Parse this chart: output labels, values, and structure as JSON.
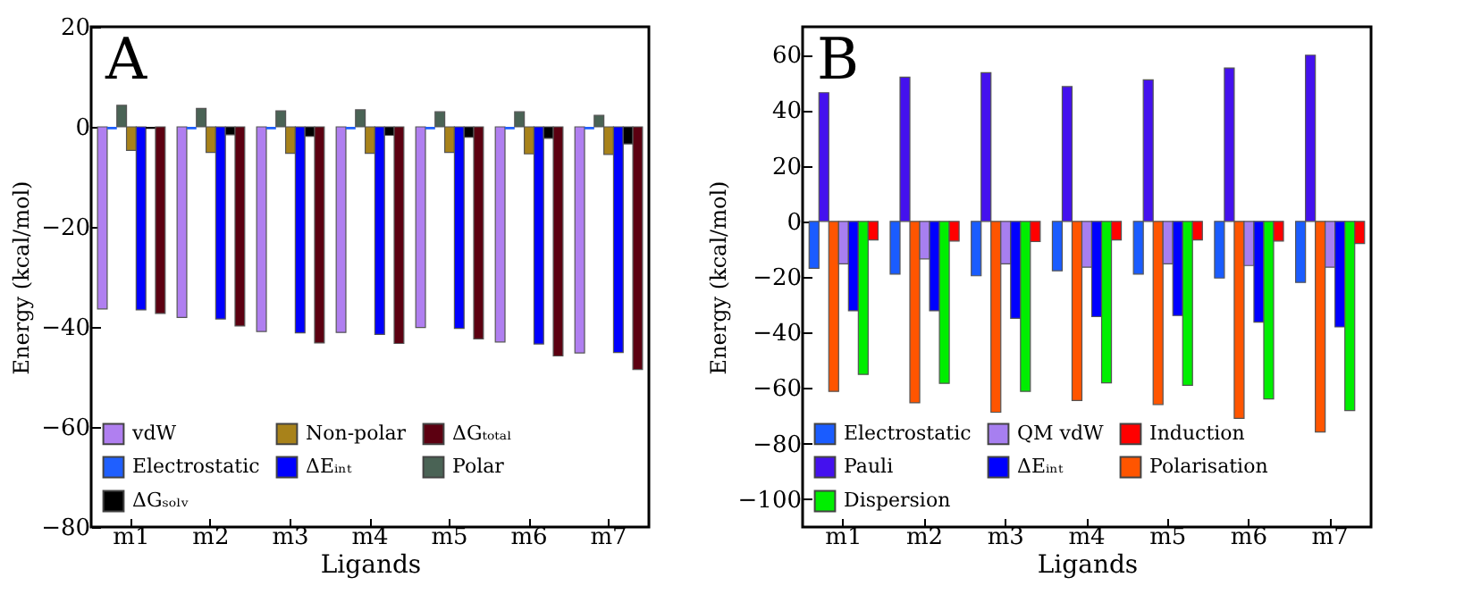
{
  "chart_data": [
    {
      "type": "bar",
      "annotations": [
        "A"
      ],
      "xlabel": "Ligands",
      "ylabel": "Energy (kcal/mol)",
      "categories": [
        "m1",
        "m2",
        "m3",
        "m4",
        "m5",
        "m6",
        "m7"
      ],
      "ylim": [
        -80,
        20
      ],
      "yticks": [
        -80,
        -60,
        -40,
        -20,
        0,
        20
      ],
      "legend": "bottom left",
      "series": [
        {
          "name": "vdW",
          "color": "#b07ff0",
          "values": [
            -36.4,
            -38.1,
            -40.9,
            -41.1,
            -40.1,
            -43.0,
            -45.2
          ]
        },
        {
          "name": "Electrostatic",
          "color": "#1f5fff",
          "values": [
            -0.5,
            -0.5,
            -0.5,
            -0.5,
            -0.5,
            -0.5,
            -0.5
          ]
        },
        {
          "name": "Polar",
          "color": "#4a6355",
          "values": [
            4.3,
            3.7,
            3.2,
            3.4,
            3.0,
            3.0,
            2.3
          ]
        },
        {
          "name": "Non-polar",
          "color": "#a8821a",
          "values": [
            -4.7,
            -5.1,
            -5.3,
            -5.3,
            -5.1,
            -5.4,
            -5.5
          ]
        },
        {
          "name": "ΔEᵢₙₜ",
          "color": "#0000ff",
          "values": [
            -36.6,
            -38.4,
            -41.2,
            -41.5,
            -40.3,
            -43.4,
            -45.1
          ]
        },
        {
          "name": "ΔGₛₒₗᵥ",
          "color": "#000000",
          "values": [
            -0.4,
            -1.6,
            -1.9,
            -1.7,
            -2.1,
            -2.3,
            -3.4
          ]
        },
        {
          "name": "ΔGₜₒₜₐₗ",
          "color": "#5c0011",
          "values": [
            -37.3,
            -39.8,
            -43.2,
            -43.3,
            -42.4,
            -45.8,
            -48.5
          ]
        }
      ]
    },
    {
      "type": "bar",
      "annotations": [
        "B"
      ],
      "xlabel": "Ligands",
      "ylabel": "Energy (kcal/mol)",
      "categories": [
        "m1",
        "m2",
        "m3",
        "m4",
        "m5",
        "m6",
        "m7"
      ],
      "ylim": [
        -110,
        70
      ],
      "yticks": [
        -100,
        -80,
        -60,
        -40,
        -20,
        0,
        20,
        40,
        60
      ],
      "legend": "bottom left",
      "series": [
        {
          "name": "Electrostatic",
          "color": "#1a5cff",
          "values": [
            -16.9,
            -19.0,
            -19.6,
            -17.8,
            -19.0,
            -20.4,
            -22.0
          ]
        },
        {
          "name": "Pauli",
          "color": "#4411ee",
          "values": [
            46.3,
            51.9,
            53.5,
            48.5,
            50.9,
            55.2,
            59.8
          ]
        },
        {
          "name": "Polarisation",
          "color": "#ff5500",
          "values": [
            -61.2,
            -65.3,
            -68.7,
            -64.5,
            -65.9,
            -70.9,
            -75.8
          ]
        },
        {
          "name": "QM vdW",
          "color": "#a77ff0",
          "values": [
            -15.3,
            -13.5,
            -15.3,
            -16.5,
            -15.3,
            -15.9,
            -16.5
          ]
        },
        {
          "name": "ΔEᵢₙₜ",
          "color": "#0000ff",
          "values": [
            -32.2,
            -32.2,
            -34.9,
            -34.3,
            -33.9,
            -36.3,
            -38.0
          ]
        },
        {
          "name": "Dispersion",
          "color": "#00ee00",
          "values": [
            -55.1,
            -58.3,
            -61.2,
            -58.1,
            -59.0,
            -63.9,
            -68.1
          ]
        },
        {
          "name": "Induction",
          "color": "#ff0000",
          "values": [
            -6.7,
            -7.1,
            -7.3,
            -6.7,
            -6.7,
            -7.1,
            -8.0
          ]
        }
      ]
    }
  ]
}
